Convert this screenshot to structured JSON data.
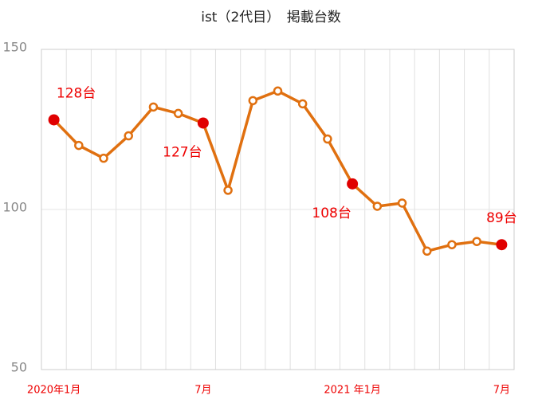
{
  "chart_data": {
    "type": "line",
    "title": "ist（2代目）　掲載台数",
    "categories": [
      "2020年1月",
      null,
      null,
      null,
      null,
      null,
      "7月",
      null,
      null,
      null,
      null,
      null,
      "2021 年1月",
      null,
      null,
      null,
      null,
      null,
      "7月"
    ],
    "series": [
      {
        "name": "掲載台数",
        "color": "#e07010",
        "highlight_color": "#e00000",
        "values": [
          128,
          120,
          116,
          123,
          132,
          130,
          127,
          106,
          134,
          137,
          133,
          122,
          108,
          101,
          102,
          87,
          89,
          90,
          89
        ],
        "value_labels": [
          "128台",
          null,
          null,
          null,
          null,
          null,
          "127台",
          null,
          null,
          null,
          null,
          null,
          "108台",
          null,
          null,
          null,
          null,
          null,
          "89台"
        ]
      }
    ],
    "ylim": [
      50,
      150
    ],
    "yticks": [
      50,
      100,
      150
    ],
    "grid": true
  }
}
